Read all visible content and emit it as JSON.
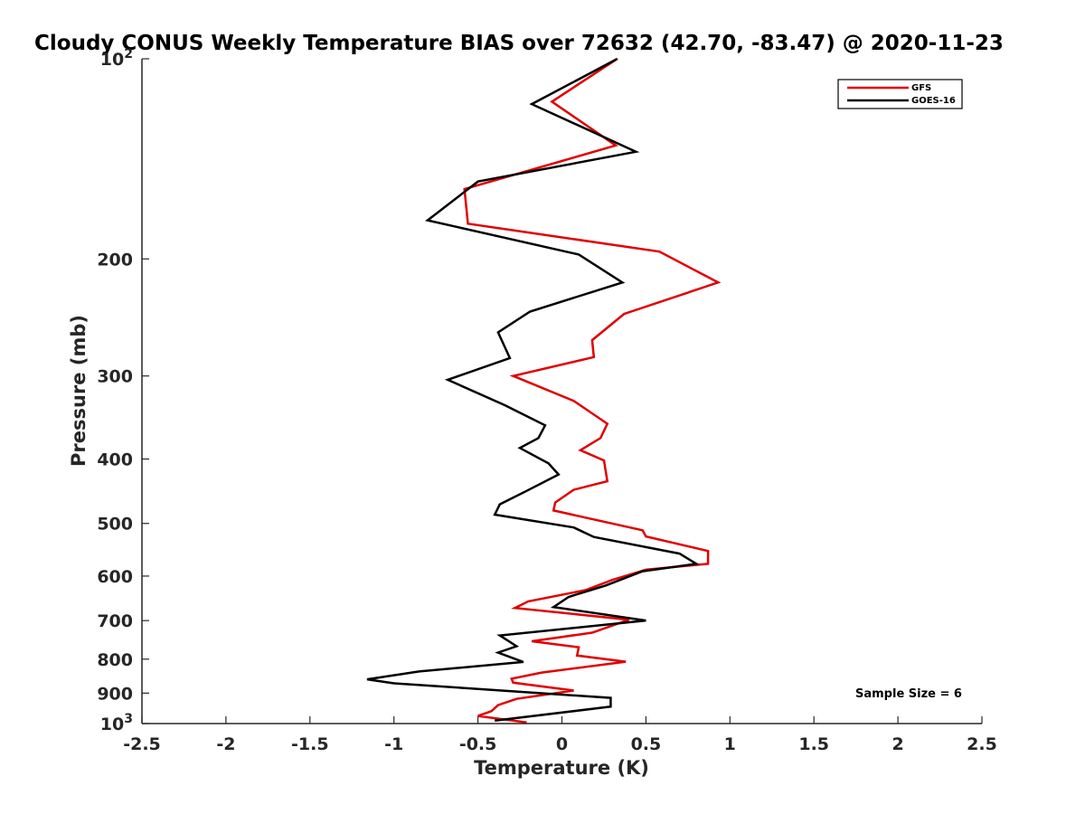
{
  "chart_data": {
    "type": "line",
    "title": "Cloudy CONUS Weekly Temperature BIAS over 72632 (42.70, -83.47) @ 2020-11-23",
    "xlabel": "Temperature (K)",
    "ylabel": "Pressure (mb)",
    "xlim": [
      -2.5,
      2.5
    ],
    "ylim": [
      100,
      1000
    ],
    "y_scale": "log",
    "y_reversed": true,
    "x_ticks": [
      "-2.5",
      "-2",
      "-1.5",
      "-1",
      "-0.5",
      "0",
      "0.5",
      "1",
      "1.5",
      "2",
      "2.5"
    ],
    "x_tick_values": [
      -2.5,
      -2,
      -1.5,
      -1,
      -0.5,
      0,
      0.5,
      1,
      1.5,
      2,
      2.5
    ],
    "y_ticks": [
      {
        "value": 100,
        "base": "10",
        "exp": "2"
      },
      {
        "value": 200,
        "label": "200"
      },
      {
        "value": 300,
        "label": "300"
      },
      {
        "value": 400,
        "label": "400"
      },
      {
        "value": 500,
        "label": "500"
      },
      {
        "value": 600,
        "label": "600"
      },
      {
        "value": 700,
        "label": "700"
      },
      {
        "value": 800,
        "label": "800"
      },
      {
        "value": 900,
        "label": "900"
      },
      {
        "value": 1000,
        "base": "10",
        "exp": "3"
      }
    ],
    "grid": false,
    "legend_position": "top-right",
    "annotation": "Sample Size = 6",
    "series": [
      {
        "name": "GFS",
        "color": "#e00000",
        "points": [
          [
            0.33,
            100
          ],
          [
            -0.06,
            116
          ],
          [
            0.32,
            135
          ],
          [
            -0.58,
            157
          ],
          [
            -0.56,
            177
          ],
          [
            0.58,
            195
          ],
          [
            0.93,
            217
          ],
          [
            0.37,
            242
          ],
          [
            0.18,
            265
          ],
          [
            0.19,
            281
          ],
          [
            -0.29,
            300
          ],
          [
            0.07,
            327
          ],
          [
            0.27,
            354
          ],
          [
            0.23,
            372
          ],
          [
            0.11,
            388
          ],
          [
            0.25,
            402
          ],
          [
            0.27,
            432
          ],
          [
            0.07,
            445
          ],
          [
            -0.04,
            465
          ],
          [
            -0.05,
            478
          ],
          [
            0.48,
            512
          ],
          [
            0.5,
            523
          ],
          [
            0.87,
            550
          ],
          [
            0.87,
            575
          ],
          [
            0.5,
            587
          ],
          [
            0.3,
            608
          ],
          [
            0.14,
            630
          ],
          [
            -0.2,
            655
          ],
          [
            -0.28,
            670
          ],
          [
            0.4,
            698
          ],
          [
            0.18,
            730
          ],
          [
            -0.18,
            752
          ],
          [
            0.1,
            768
          ],
          [
            0.09,
            790
          ],
          [
            0.38,
            807
          ],
          [
            -0.12,
            838
          ],
          [
            -0.3,
            856
          ],
          [
            -0.29,
            868
          ],
          [
            0.07,
            892
          ],
          [
            -0.27,
            918
          ],
          [
            -0.38,
            938
          ],
          [
            -0.42,
            958
          ],
          [
            -0.5,
            974
          ],
          [
            -0.21,
            996
          ]
        ]
      },
      {
        "name": "GOES-16",
        "color": "#000000",
        "points": [
          [
            0.33,
            100
          ],
          [
            -0.18,
            117
          ],
          [
            0.44,
            138
          ],
          [
            -0.5,
            153
          ],
          [
            -0.8,
            175
          ],
          [
            0.1,
            197
          ],
          [
            0.36,
            217
          ],
          [
            -0.19,
            240
          ],
          [
            -0.38,
            258
          ],
          [
            -0.31,
            282
          ],
          [
            -0.68,
            304
          ],
          [
            -0.34,
            332
          ],
          [
            -0.1,
            356
          ],
          [
            -0.14,
            372
          ],
          [
            -0.25,
            385
          ],
          [
            -0.08,
            406
          ],
          [
            -0.02,
            422
          ],
          [
            -0.22,
            448
          ],
          [
            -0.37,
            468
          ],
          [
            -0.4,
            485
          ],
          [
            0.07,
            507
          ],
          [
            0.19,
            524
          ],
          [
            0.7,
            555
          ],
          [
            0.8,
            575
          ],
          [
            0.48,
            590
          ],
          [
            0.26,
            620
          ],
          [
            0.04,
            645
          ],
          [
            -0.05,
            668
          ],
          [
            0.5,
            700
          ],
          [
            -0.37,
            737
          ],
          [
            -0.27,
            765
          ],
          [
            -0.38,
            782
          ],
          [
            -0.23,
            808
          ],
          [
            -0.85,
            835
          ],
          [
            -1.16,
            858
          ],
          [
            -1.0,
            870
          ],
          [
            0.29,
            915
          ],
          [
            0.29,
            943
          ],
          [
            -0.4,
            990
          ]
        ]
      }
    ]
  }
}
